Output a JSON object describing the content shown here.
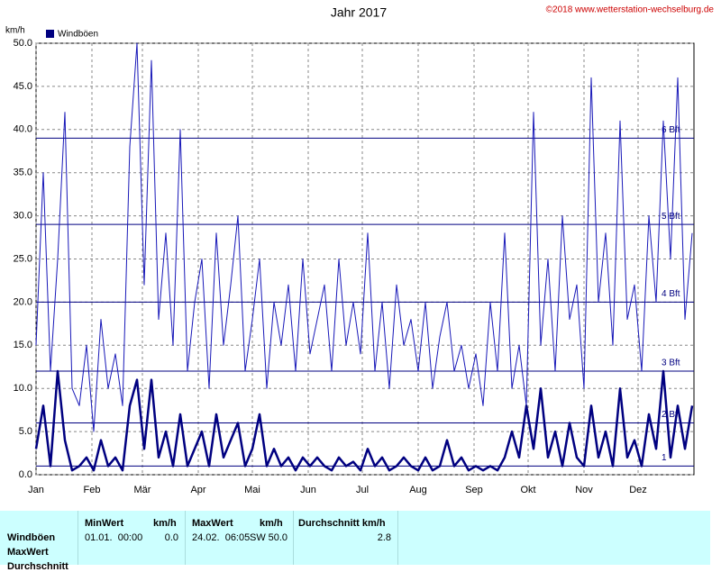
{
  "chart_data": {
    "type": "line",
    "title": "Jahr 2017",
    "copyright": "©2018 www.wetterstation-wechselburg.de",
    "y_unit": "km/h",
    "xlim": [
      0,
      365
    ],
    "xticks": [
      {
        "value": 0,
        "label": "Jan"
      },
      {
        "value": 31,
        "label": "Feb"
      },
      {
        "value": 59,
        "label": "Mär"
      },
      {
        "value": 90,
        "label": "Apr"
      },
      {
        "value": 120,
        "label": "Mai"
      },
      {
        "value": 151,
        "label": "Jun"
      },
      {
        "value": 181,
        "label": "Jul"
      },
      {
        "value": 212,
        "label": "Aug"
      },
      {
        "value": 243,
        "label": "Sep"
      },
      {
        "value": 273,
        "label": "Okt"
      },
      {
        "value": 304,
        "label": "Nov"
      },
      {
        "value": 334,
        "label": "Dez"
      }
    ],
    "ylim": [
      0,
      50
    ],
    "yticks": [
      {
        "value": 0,
        "label": "0.0"
      },
      {
        "value": 5,
        "label": "5.0"
      },
      {
        "value": 10,
        "label": "10.0"
      },
      {
        "value": 15,
        "label": "15.0"
      },
      {
        "value": 20,
        "label": "20.0"
      },
      {
        "value": 25,
        "label": "25.0"
      },
      {
        "value": 30,
        "label": "30.0"
      },
      {
        "value": 35,
        "label": "35.0"
      },
      {
        "value": 40,
        "label": "40.0"
      },
      {
        "value": 45,
        "label": "45.0"
      },
      {
        "value": 50,
        "label": "50.0"
      }
    ],
    "grid": true,
    "legend": "top-left",
    "bft_lines": [
      {
        "value": 1,
        "label": "1"
      },
      {
        "value": 6,
        "label": "2 Bft"
      },
      {
        "value": 12,
        "label": "3 Bft"
      },
      {
        "value": 20,
        "label": "4 Bft"
      },
      {
        "value": 29,
        "label": "5 Bft"
      },
      {
        "value": 39,
        "label": "6 Bft"
      }
    ],
    "x": [
      0,
      4,
      8,
      12,
      16,
      20,
      24,
      28,
      32,
      36,
      40,
      44,
      48,
      52,
      56,
      60,
      64,
      68,
      72,
      76,
      80,
      84,
      88,
      92,
      96,
      100,
      104,
      108,
      112,
      116,
      120,
      124,
      128,
      132,
      136,
      140,
      144,
      148,
      152,
      156,
      160,
      164,
      168,
      172,
      176,
      180,
      184,
      188,
      192,
      196,
      200,
      204,
      208,
      212,
      216,
      220,
      224,
      228,
      232,
      236,
      240,
      244,
      248,
      252,
      256,
      260,
      264,
      268,
      272,
      276,
      280,
      284,
      288,
      292,
      296,
      300,
      304,
      308,
      312,
      316,
      320,
      324,
      328,
      332,
      336,
      340,
      344,
      348,
      352,
      356,
      360,
      364
    ],
    "series": [
      {
        "name": "Windböen",
        "color": "#1818b8",
        "width": 1,
        "values": [
          15,
          35,
          12,
          25,
          42,
          10,
          8,
          15,
          5,
          18,
          10,
          14,
          8,
          38,
          50,
          22,
          48,
          18,
          28,
          15,
          40,
          12,
          20,
          25,
          10,
          28,
          15,
          22,
          30,
          12,
          18,
          25,
          10,
          20,
          15,
          22,
          12,
          25,
          14,
          18,
          22,
          12,
          25,
          15,
          20,
          14,
          28,
          12,
          20,
          10,
          22,
          15,
          18,
          12,
          20,
          10,
          16,
          20,
          12,
          15,
          10,
          14,
          8,
          20,
          12,
          28,
          10,
          15,
          8,
          42,
          15,
          25,
          12,
          30,
          18,
          22,
          10,
          46,
          20,
          28,
          15,
          41,
          18,
          22,
          12,
          30,
          20,
          41,
          25,
          46,
          18,
          28
        ]
      },
      {
        "color": "#000080",
        "width": 2.5,
        "values": [
          3,
          8,
          1,
          12,
          4,
          0.5,
          1,
          2,
          0.5,
          4,
          1,
          2,
          0.5,
          8,
          11,
          3,
          11,
          2,
          5,
          1,
          7,
          1,
          3,
          5,
          1,
          7,
          2,
          4,
          6,
          1,
          3,
          7,
          1,
          3,
          1,
          2,
          0.5,
          2,
          1,
          2,
          1,
          0.5,
          2,
          1,
          1.5,
          0.5,
          3,
          1,
          2,
          0.5,
          1,
          2,
          1,
          0.5,
          2,
          0.5,
          1,
          4,
          1,
          2,
          0.5,
          1,
          0.5,
          1,
          0.5,
          2,
          5,
          2,
          8,
          3,
          10,
          2,
          5,
          1,
          6,
          2,
          1,
          8,
          2,
          5,
          1,
          10,
          2,
          4,
          1,
          7,
          3,
          12,
          2,
          8,
          3,
          8
        ]
      }
    ]
  },
  "table": {
    "headers": [
      "MinWert",
      "km/h",
      "MaxWert",
      "km/h",
      "Durchschnitt km/h"
    ],
    "row_labels": [
      "Windböen",
      "MaxWert",
      "Durchschnitt"
    ],
    "min_time": "01.01.  00:00",
    "min_value": "0.0",
    "max_time": "24.02.  06:05",
    "max_dir": "SW",
    "max_value": "50.0",
    "avg_value": "2.8"
  }
}
